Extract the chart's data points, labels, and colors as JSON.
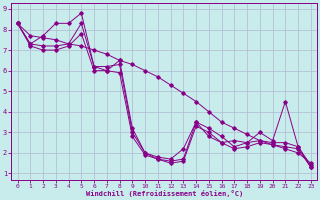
{
  "title": "",
  "xlabel": "Windchill (Refroidissement éolien,°C)",
  "bg_color": "#c8ecec",
  "grid_color": "#b0b8d0",
  "line_color": "#880088",
  "xlim": [
    -0.5,
    23.5
  ],
  "ylim": [
    0.7,
    9.3
  ],
  "xticks": [
    0,
    1,
    2,
    3,
    4,
    5,
    6,
    7,
    8,
    9,
    10,
    11,
    12,
    13,
    14,
    15,
    16,
    17,
    18,
    19,
    20,
    21,
    22,
    23
  ],
  "yticks": [
    1,
    2,
    3,
    4,
    5,
    6,
    7,
    8,
    9
  ],
  "line1_x": [
    0,
    1,
    2,
    3,
    4,
    5,
    6,
    7,
    8,
    9,
    10,
    11,
    12,
    13,
    14,
    15,
    16,
    17,
    18,
    19,
    20,
    21,
    22,
    23
  ],
  "line1_y": [
    8.3,
    7.3,
    7.7,
    8.3,
    8.3,
    8.8,
    6.2,
    6.0,
    6.5,
    3.2,
    2.0,
    1.8,
    1.7,
    2.2,
    3.5,
    2.8,
    2.5,
    2.6,
    2.5,
    3.0,
    2.6,
    4.5,
    2.3,
    1.3
  ],
  "line2_x": [
    0,
    1,
    2,
    3,
    4,
    5,
    6,
    7,
    8,
    9,
    10,
    11,
    12,
    13,
    14,
    15,
    16,
    17,
    18,
    19,
    20,
    21,
    22,
    23
  ],
  "line2_y": [
    8.3,
    7.3,
    7.2,
    7.2,
    7.3,
    8.3,
    6.2,
    6.2,
    6.3,
    3.0,
    2.0,
    1.7,
    1.6,
    1.7,
    3.5,
    3.2,
    2.8,
    2.3,
    2.5,
    2.6,
    2.5,
    2.5,
    2.3,
    1.4
  ],
  "line3_x": [
    0,
    1,
    2,
    3,
    4,
    5,
    6,
    7,
    8,
    9,
    10,
    11,
    12,
    13,
    14,
    15,
    16,
    17,
    18,
    19,
    20,
    21,
    22,
    23
  ],
  "line3_y": [
    8.3,
    7.2,
    7.0,
    7.0,
    7.2,
    7.8,
    6.0,
    6.0,
    5.9,
    2.8,
    1.9,
    1.7,
    1.5,
    1.6,
    3.3,
    3.0,
    2.5,
    2.2,
    2.3,
    2.5,
    2.4,
    2.3,
    2.2,
    1.3
  ],
  "line4_x": [
    0,
    1,
    2,
    3,
    4,
    5,
    6,
    7,
    8,
    9,
    10,
    11,
    12,
    13,
    14,
    15,
    16,
    17,
    18,
    19,
    20,
    21,
    22,
    23
  ],
  "line4_y": [
    8.3,
    7.7,
    7.6,
    7.5,
    7.3,
    7.2,
    7.0,
    6.8,
    6.5,
    6.3,
    6.0,
    5.7,
    5.3,
    4.9,
    4.5,
    4.0,
    3.5,
    3.2,
    2.9,
    2.6,
    2.4,
    2.2,
    2.0,
    1.5
  ]
}
